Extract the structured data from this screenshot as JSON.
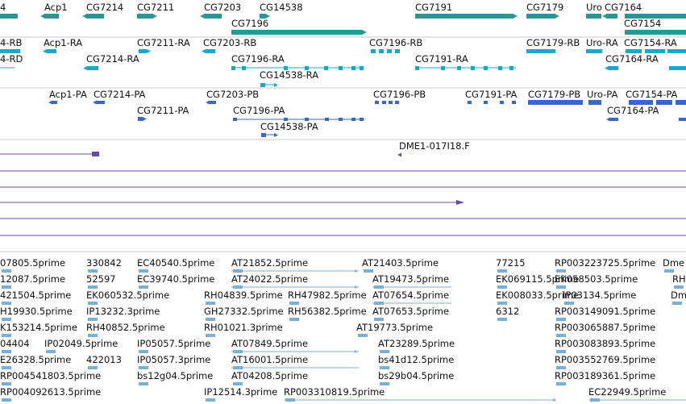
{
  "colors": {
    "gene": "#2f9494",
    "transcript": "#18a8c8",
    "protein": "#3668c8",
    "clone": "#6a4aa0",
    "est": "#78b0d8",
    "divider": "#c9c9c9"
  },
  "tracks": {
    "genes": {
      "row1": [
        "4",
        "Acp1",
        "CG7214",
        "CG7211",
        "CG7203",
        "CG14538",
        "CG7191",
        "CG7179",
        "Uro",
        "CG7164"
      ],
      "row2": [
        "CG7196",
        "CG7154"
      ]
    },
    "transcripts": {
      "row1": [
        "4-RB",
        "Acp1-RA",
        "CG7211-RA",
        "CG7203-RB",
        "CG7196-RB",
        "CG7179-RB",
        "Uro-RA",
        "CG7154-RA"
      ],
      "row2": [
        "4-RD",
        "CG7214-RA",
        "CG7196-RA",
        "CG7191-RA",
        "CG7164-RA"
      ],
      "row3": [
        "CG14538-RA"
      ]
    },
    "proteins": {
      "row1": [
        "Acp1-PA",
        "CG7214-PA",
        "CG7203-PB",
        "CG7196-PB",
        "CG7191-PA",
        "CG7179-PB",
        "Uro-PA",
        "CG7154-PA"
      ],
      "row2": [
        "CG7211-PA",
        "CG7196-PA",
        "CG7164-PA"
      ],
      "row3": [
        "CG14538-PA"
      ]
    },
    "clones": {
      "label": "DME1-017I18.F"
    },
    "ests": {
      "rows": [
        [
          "07805.5prime",
          "330842",
          "EC40540.5prime",
          "AT21852.5prime",
          "AT21403.5prime",
          "77215",
          "RP003223725.5prime",
          "Dme"
        ],
        [
          "12087.5prime",
          "52597",
          "EC39740.5prime",
          "AT24022.5prime",
          "AT19473.5prime",
          "EK069115.5prime",
          "EK058503.5prime",
          "RH"
        ],
        [
          "421504.5prime",
          "EK060532.5prime",
          "RH04839.5prime",
          "RH47982.5prime",
          "AT07654.5prime",
          "EK008033.5prime",
          "IP03134.5prime",
          "Dm"
        ],
        [
          "H19930.5prime",
          "IP13232.3prime",
          "GH27332.5prime",
          "RH56382.5prime",
          "AT07653.5prime",
          "6312",
          "RP003149091.5prime"
        ],
        [
          "K153214.5prime",
          "RH40852.5prime",
          "RH01021.3prime",
          "AT19773.5prime",
          "RP003065887.5prime"
        ],
        [
          "04404",
          "IP02049.5prime",
          "IP05057.5prime",
          "AT07849.5prime",
          "AT23289.5prime",
          "RP003083893.5prime"
        ],
        [
          "E26328.5prime",
          "422013",
          "IP05057.3prime",
          "AT16001.5prime",
          "bs41d12.5prime",
          "RP003552769.5prime"
        ],
        [
          "RP004541803.5prime",
          "bs12g04.5prime",
          "AT04208.5prime",
          "bs29b04.5prime",
          "RP003189361.5prime"
        ],
        [
          "RP004092613.5prime",
          "IP12514.3prime",
          "RP003310819.5prime",
          "EC22949.5prime"
        ]
      ]
    }
  }
}
